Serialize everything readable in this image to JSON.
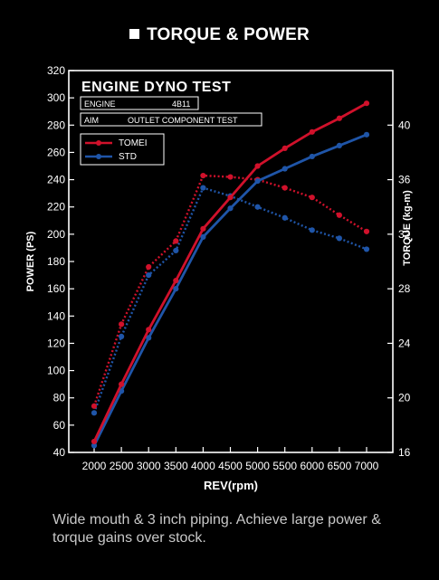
{
  "header": {
    "title": "TORQUE & POWER"
  },
  "caption": "Wide mouth & 3 inch piping. Achieve large power & torque gains over stock.",
  "chart_data": {
    "type": "line",
    "title": "ENGINE DYNO TEST",
    "info": [
      {
        "label": "ENGINE",
        "value": "4B11"
      },
      {
        "label": "AIM",
        "value": "OUTLET COMPONENT TEST"
      }
    ],
    "xlabel": "REV(rpm)",
    "ylabel": "POWER (PS)",
    "y2label": "TORQUE (kg-m)",
    "x": [
      2000,
      2500,
      3000,
      3500,
      4000,
      4500,
      5000,
      5500,
      6000,
      6500,
      7000
    ],
    "xlim": [
      2000,
      7000
    ],
    "ylim": [
      40,
      320
    ],
    "y2lim": [
      16,
      44
    ],
    "yticks": [
      40,
      60,
      80,
      100,
      120,
      140,
      160,
      180,
      200,
      220,
      240,
      260,
      280,
      300,
      320
    ],
    "y2ticks": [
      16,
      20,
      24,
      28,
      32,
      36,
      40
    ],
    "legend": "top-left",
    "grid": false,
    "colors": {
      "tomei": "#d0112b",
      "std": "#1f55a8",
      "axis": "#ffffff"
    },
    "series": [
      {
        "name": "TOMEI",
        "quantity": "power",
        "axis": "left",
        "values": [
          48,
          90,
          130,
          166,
          204,
          227,
          250,
          263,
          275,
          285,
          296
        ]
      },
      {
        "name": "STD",
        "quantity": "power",
        "axis": "left",
        "values": [
          45,
          85,
          124,
          160,
          198,
          219,
          239,
          248,
          257,
          265,
          273
        ]
      },
      {
        "name": "TOMEI",
        "quantity": "torque",
        "axis": "right",
        "values": [
          19.4,
          25.4,
          29.6,
          31.5,
          36.3,
          36.2,
          36.0,
          35.4,
          34.7,
          33.4,
          32.2
        ]
      },
      {
        "name": "STD",
        "quantity": "torque",
        "axis": "right",
        "values": [
          18.9,
          24.5,
          29.0,
          30.8,
          35.4,
          34.8,
          34.0,
          33.2,
          32.3,
          31.7,
          30.9
        ]
      }
    ]
  }
}
